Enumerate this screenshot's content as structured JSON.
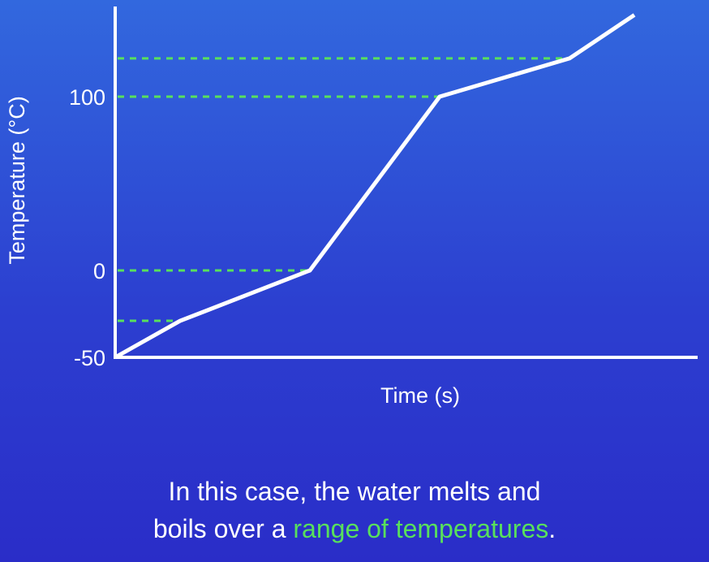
{
  "chart_data": {
    "type": "line",
    "title": "",
    "xlabel": "Time (s)",
    "ylabel": "Temperature (°C)",
    "x": [
      0,
      1,
      3,
      5,
      7,
      8
    ],
    "series": [
      {
        "values": [
          -50,
          -29,
          0,
          100,
          122,
          147
        ]
      }
    ],
    "yticks": [
      -50,
      0,
      100
    ],
    "ylim": [
      -50,
      150
    ],
    "xlim": [
      0,
      8.2
    ],
    "reference_lines": [
      {
        "y": -29,
        "x_end": 1
      },
      {
        "y": 0,
        "x_end": 3
      },
      {
        "y": 100,
        "x_end": 5
      },
      {
        "y": 122,
        "x_end": 7
      }
    ],
    "grid": false,
    "colors": {
      "line": "#ffffff",
      "reference": "#58e05c",
      "axis": "#ffffff"
    }
  },
  "caption": {
    "line1": "In this case, the water melts and",
    "line2_prefix": "boils over a ",
    "line2_highlight": "range of temperatures",
    "line2_suffix": "."
  }
}
